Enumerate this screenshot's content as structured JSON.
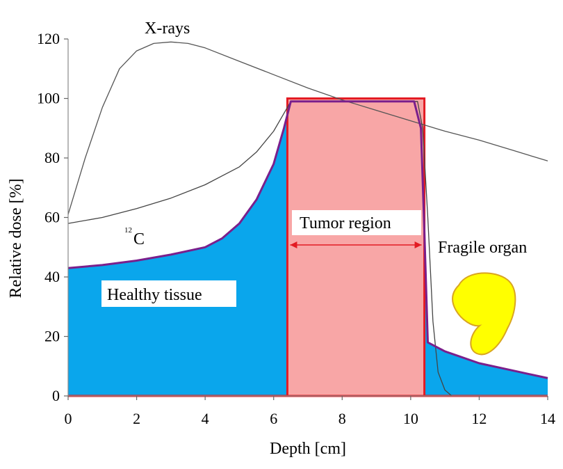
{
  "chart_data": {
    "type": "line",
    "title": "",
    "xlabel": "Depth [cm]",
    "ylabel": "Relative dose [%]",
    "xlim": [
      0,
      14
    ],
    "ylim": [
      0,
      120
    ],
    "x_ticks": [
      "0",
      "2",
      "4",
      "6",
      "8",
      "10",
      "12",
      "14"
    ],
    "y_ticks": [
      "0",
      "20",
      "40",
      "60",
      "80",
      "100",
      "120"
    ],
    "grid": false,
    "series": [
      {
        "name": "X-rays",
        "color": "#555555",
        "points": [
          [
            0,
            61
          ],
          [
            0.5,
            80
          ],
          [
            1,
            97
          ],
          [
            1.5,
            110
          ],
          [
            2,
            116
          ],
          [
            2.5,
            118.5
          ],
          [
            3,
            119
          ],
          [
            3.5,
            118.5
          ],
          [
            4,
            117
          ],
          [
            5,
            112.5
          ],
          [
            6,
            108
          ],
          [
            7,
            103.5
          ],
          [
            8,
            99.5
          ],
          [
            9,
            96
          ],
          [
            10,
            92.5
          ],
          [
            11,
            89
          ],
          [
            12,
            86
          ],
          [
            13,
            82.5
          ],
          [
            14,
            79
          ]
        ]
      },
      {
        "name": "",
        "color": "#444444",
        "points": [
          [
            0,
            58
          ],
          [
            1,
            60
          ],
          [
            2,
            63
          ],
          [
            3,
            66.5
          ],
          [
            4,
            71
          ],
          [
            5,
            77
          ],
          [
            5.5,
            82
          ],
          [
            6,
            89
          ],
          [
            6.3,
            95
          ],
          [
            6.5,
            99
          ],
          [
            10.2,
            99
          ],
          [
            10.35,
            90
          ],
          [
            10.5,
            60
          ],
          [
            10.65,
            25
          ],
          [
            10.8,
            8
          ],
          [
            11,
            2
          ],
          [
            11.2,
            0
          ]
        ]
      },
      {
        "name": "12C",
        "color": "#7a1f8c",
        "fill": "#0aa6ec",
        "points": [
          [
            0,
            43
          ],
          [
            1,
            44
          ],
          [
            2,
            45.5
          ],
          [
            3,
            47.5
          ],
          [
            4,
            50
          ],
          [
            4.5,
            53
          ],
          [
            5,
            58
          ],
          [
            5.5,
            66
          ],
          [
            6,
            78
          ],
          [
            6.3,
            90
          ],
          [
            6.5,
            99
          ],
          [
            10.1,
            99
          ],
          [
            10.3,
            90
          ],
          [
            10.4,
            55
          ],
          [
            10.5,
            18
          ],
          [
            11,
            15
          ],
          [
            12,
            11
          ],
          [
            13,
            8.5
          ],
          [
            14,
            6
          ]
        ]
      }
    ],
    "region": {
      "label": "Tumor region",
      "x": [
        6.4,
        10.4
      ],
      "y": [
        0,
        100
      ],
      "fill": "#f8a6a6",
      "stroke": "#e31b23"
    },
    "annotations": {
      "xrays_label": "X-rays",
      "carbon_label_sup": "12",
      "carbon_label_main": "C",
      "healthy_label": "Healthy tissue",
      "fragile_label": "Fragile organ"
    },
    "colors": {
      "tumor_text": "#e31b23",
      "arrow": "#e31b23",
      "organ_fill": "#ffff00",
      "organ_stroke": "#d9a520"
    }
  }
}
